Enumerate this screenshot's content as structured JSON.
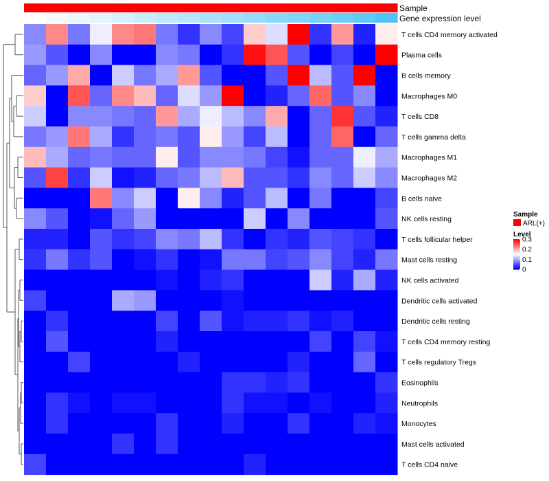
{
  "chart_data": {
    "type": "heatmap",
    "title": "",
    "annotation_rows": [
      "Sample",
      "Gene expression level"
    ],
    "rows": [
      "T cells CD4 memory activated",
      "Plasma cells",
      "B cells memory",
      "Macrophages M0",
      "T cells CD8",
      "T cells gamma delta",
      "Macrophages M1",
      "Macrophages M2",
      "B cells naive",
      "NK cells resting",
      "T cells follicular helper",
      "Mast cells resting",
      "NK cells activated",
      "Dendritic cells activated",
      "Dendritic cells resting",
      "T cells CD4 memory resting",
      "T cells regulatory  Tregs",
      "Eosinophils",
      "Neutrophils",
      "Monocytes",
      "Mast cells activated",
      "T cells CD4 naive"
    ],
    "n_columns": 17,
    "values": [
      [
        0.08,
        0.22,
        0.07,
        0.14,
        0.22,
        0.23,
        0.07,
        0.03,
        0.08,
        0.04,
        0.18,
        0.13,
        0.3,
        0.03,
        0.21,
        0.02,
        0.16
      ],
      [
        0.09,
        0.05,
        0.0,
        0.08,
        0.0,
        0.0,
        0.08,
        0.07,
        0.0,
        0.03,
        0.29,
        0.25,
        0.05,
        0.0,
        0.04,
        0.0,
        0.3
      ],
      [
        0.06,
        0.09,
        0.2,
        0.0,
        0.12,
        0.07,
        0.1,
        0.21,
        0.05,
        0.0,
        0.0,
        0.05,
        0.3,
        0.11,
        0.05,
        0.3,
        0.0
      ],
      [
        0.18,
        0.0,
        0.25,
        0.06,
        0.22,
        0.19,
        0.06,
        0.13,
        0.09,
        0.3,
        0.0,
        0.02,
        0.06,
        0.24,
        0.05,
        0.08,
        0.0
      ],
      [
        0.12,
        0.0,
        0.08,
        0.08,
        0.07,
        0.06,
        0.21,
        0.1,
        0.14,
        0.11,
        0.08,
        0.2,
        0.0,
        0.06,
        0.27,
        0.05,
        0.02
      ],
      [
        0.07,
        0.09,
        0.23,
        0.1,
        0.03,
        0.06,
        0.07,
        0.05,
        0.16,
        0.09,
        0.04,
        0.11,
        0.0,
        0.06,
        0.24,
        0.0,
        0.06
      ],
      [
        0.19,
        0.1,
        0.06,
        0.07,
        0.06,
        0.06,
        0.16,
        0.05,
        0.08,
        0.08,
        0.07,
        0.04,
        0.01,
        0.06,
        0.06,
        0.14,
        0.1
      ],
      [
        0.05,
        0.26,
        0.03,
        0.12,
        0.01,
        0.02,
        0.06,
        0.07,
        0.11,
        0.19,
        0.05,
        0.05,
        0.03,
        0.08,
        0.06,
        0.12,
        0.08
      ],
      [
        0.0,
        0.0,
        0.0,
        0.23,
        0.08,
        0.12,
        0.0,
        0.16,
        0.08,
        0.02,
        0.05,
        0.11,
        0.0,
        0.07,
        0.0,
        0.0,
        0.04
      ],
      [
        0.08,
        0.05,
        0.0,
        0.01,
        0.06,
        0.09,
        0.0,
        0.0,
        0.0,
        0.0,
        0.12,
        0.0,
        0.08,
        0.0,
        0.0,
        0.0,
        0.05
      ],
      [
        0.02,
        0.02,
        0.0,
        0.05,
        0.03,
        0.04,
        0.08,
        0.07,
        0.11,
        0.03,
        0.0,
        0.03,
        0.02,
        0.05,
        0.04,
        0.03,
        0.0
      ],
      [
        0.03,
        0.07,
        0.03,
        0.05,
        0.0,
        0.01,
        0.03,
        0.0,
        0.01,
        0.07,
        0.07,
        0.04,
        0.05,
        0.08,
        0.04,
        0.02,
        0.07
      ],
      [
        0.0,
        0.0,
        0.0,
        0.0,
        0.0,
        0.0,
        0.01,
        0.0,
        0.02,
        0.03,
        0.0,
        0.0,
        0.0,
        0.12,
        0.02,
        0.1,
        0.02
      ],
      [
        0.04,
        0.0,
        0.0,
        0.0,
        0.1,
        0.09,
        0.0,
        0.0,
        0.0,
        0.01,
        0.0,
        0.0,
        0.0,
        0.0,
        0.0,
        0.0,
        0.0
      ],
      [
        0.0,
        0.03,
        0.0,
        0.0,
        0.0,
        0.0,
        0.04,
        0.0,
        0.05,
        0.01,
        0.02,
        0.02,
        0.03,
        0.01,
        0.02,
        0.0,
        0.0
      ],
      [
        0.0,
        0.05,
        0.0,
        0.0,
        0.0,
        0.0,
        0.02,
        0.0,
        0.0,
        0.0,
        0.0,
        0.0,
        0.0,
        0.04,
        0.0,
        0.04,
        0.01
      ],
      [
        0.0,
        0.0,
        0.04,
        0.0,
        0.0,
        0.0,
        0.0,
        0.02,
        0.0,
        0.0,
        0.0,
        0.0,
        0.02,
        0.0,
        0.0,
        0.06,
        0.0
      ],
      [
        0.0,
        0.0,
        0.0,
        0.0,
        0.0,
        0.0,
        0.0,
        0.0,
        0.0,
        0.03,
        0.03,
        0.02,
        0.03,
        0.0,
        0.0,
        0.0,
        0.03
      ],
      [
        0.0,
        0.03,
        0.01,
        0.0,
        0.01,
        0.01,
        0.0,
        0.0,
        0.0,
        0.03,
        0.01,
        0.01,
        0.0,
        0.01,
        0.0,
        0.0,
        0.02
      ],
      [
        0.0,
        0.03,
        0.0,
        0.0,
        0.0,
        0.0,
        0.03,
        0.0,
        0.0,
        0.02,
        0.0,
        0.0,
        0.03,
        0.0,
        0.0,
        0.02,
        0.01
      ],
      [
        0.0,
        0.0,
        0.0,
        0.0,
        0.03,
        0.0,
        0.03,
        0.0,
        0.0,
        0.0,
        0.0,
        0.0,
        0.0,
        0.0,
        0.0,
        0.0,
        0.0
      ],
      [
        0.04,
        0.0,
        0.0,
        0.0,
        0.0,
        0.0,
        0.0,
        0.0,
        0.0,
        0.0,
        0.02,
        0.0,
        0.0,
        0.0,
        0.0,
        0.0,
        0.0
      ]
    ],
    "gene_expression_level": [
      0.0,
      0.06,
      0.12,
      0.18,
      0.24,
      0.3,
      0.36,
      0.42,
      0.48,
      0.54,
      0.6,
      0.66,
      0.72,
      0.78,
      0.84,
      0.9,
      1.0
    ],
    "legend": {
      "placement": "right",
      "sample_title": "Sample",
      "sample_entries": [
        {
          "label": "ARL(+)",
          "color": "#ff0000"
        }
      ],
      "level_title": "Level",
      "level_ticks": [
        "0.3",
        "0.2",
        "0.1",
        "0"
      ],
      "level_range": [
        0,
        0.3
      ]
    },
    "colors": {
      "low": "#0000ff",
      "mid": "#ffffff",
      "high": "#ff0000",
      "sample": "#ff0000",
      "gene_level_high": "#4fc3f7",
      "gene_level_low": "#ffffff"
    },
    "row_dendrogram": true,
    "column_dendrogram": false
  }
}
